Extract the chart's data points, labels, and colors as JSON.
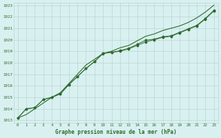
{
  "x": [
    0,
    1,
    2,
    3,
    4,
    5,
    6,
    7,
    8,
    9,
    10,
    11,
    12,
    13,
    14,
    15,
    16,
    17,
    18,
    19,
    20,
    21,
    22,
    23
  ],
  "line1": [
    1013.2,
    1014.0,
    1014.1,
    1014.8,
    1015.0,
    1015.3,
    1016.1,
    1016.8,
    1017.5,
    1018.1,
    1018.8,
    1018.9,
    1019.0,
    1019.2,
    1019.5,
    1019.8,
    1020.0,
    1020.2,
    1020.3,
    1020.6,
    1020.9,
    1021.2,
    1021.8,
    1022.5
  ],
  "line2": [
    1013.2,
    1013.5,
    1014.0,
    1014.5,
    1015.0,
    1015.4,
    1016.2,
    1017.0,
    1017.8,
    1018.3,
    1018.8,
    1019.0,
    1019.3,
    1019.5,
    1019.9,
    1020.3,
    1020.5,
    1020.8,
    1021.0,
    1021.2,
    1021.5,
    1021.9,
    1022.4,
    1023.0
  ],
  "line3": [
    1013.2,
    1014.0,
    1014.1,
    1014.8,
    1015.0,
    1015.3,
    1016.1,
    1016.8,
    1017.5,
    1018.1,
    1018.85,
    1018.9,
    1019.05,
    1019.25,
    1019.6,
    1019.95,
    1020.05,
    1020.25,
    1020.35,
    1020.65,
    1020.95,
    1021.25,
    1021.85,
    1022.55
  ],
  "line_color": "#2d6a2d",
  "bg_color": "#d9f0f0",
  "grid_color": "#b8d4d4",
  "xlabel": "Graphe pression niveau de la mer (hPa)",
  "xlim": [
    -0.5,
    23.5
  ],
  "ylim": [
    1012.8,
    1023.2
  ],
  "yticks": [
    1013,
    1014,
    1015,
    1016,
    1017,
    1018,
    1019,
    1020,
    1021,
    1022,
    1023
  ],
  "xticks": [
    0,
    1,
    2,
    3,
    4,
    5,
    6,
    7,
    8,
    9,
    10,
    11,
    12,
    13,
    14,
    15,
    16,
    17,
    18,
    19,
    20,
    21,
    22,
    23
  ]
}
